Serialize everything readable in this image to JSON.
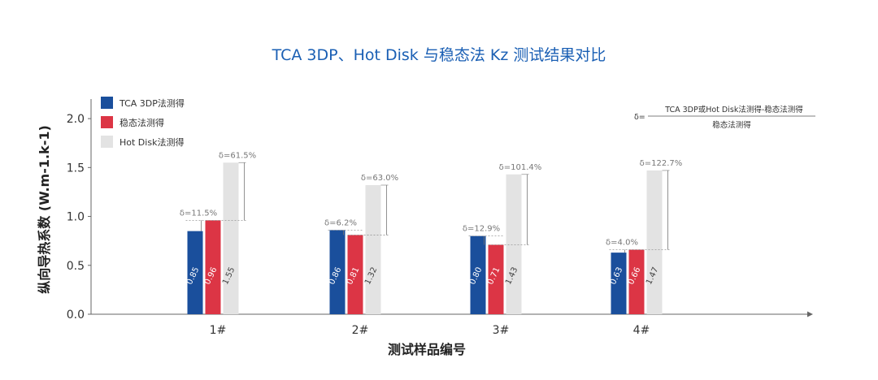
{
  "chart_data": {
    "type": "bar",
    "title": "TCA 3DP、Hot Disk 与稳态法 Kz 测试结果对比",
    "xlabel": "测试样品编号",
    "ylabel": "纵向导热系数 (W.m-1.k-1)",
    "ylim": [
      0,
      2.2
    ],
    "yticks": [
      "0.0",
      "0.5",
      "1.0",
      "1.5",
      "2.0"
    ],
    "ytick_values": [
      0,
      0.5,
      1.0,
      1.5,
      2.0
    ],
    "categories": [
      "1#",
      "2#",
      "3#",
      "4#"
    ],
    "legend_position": "top-left",
    "series": [
      {
        "name": "TCA 3DP法测得",
        "color": "#1a4f9c",
        "values": [
          0.85,
          0.86,
          0.8,
          0.63
        ],
        "labels": [
          "0.85",
          "0.86",
          "0.80",
          "0.63"
        ]
      },
      {
        "name": "稳态法测得",
        "color": "#dc3545",
        "values": [
          0.96,
          0.81,
          0.71,
          0.66
        ],
        "labels": [
          "0.96",
          "0.81",
          "0.71",
          "0.66"
        ]
      },
      {
        "name": "Hot Disk法测得",
        "color": "#e3e3e3",
        "values": [
          1.55,
          1.32,
          1.43,
          1.47
        ],
        "labels": [
          "1.55",
          "1.32",
          "1.43",
          "1.47"
        ]
      }
    ],
    "deltas_tca": [
      "δ=11.5%",
      "δ=6.2%",
      "δ=12.9%",
      "δ=4.0%"
    ],
    "deltas_hotdisk": [
      "δ=61.5%",
      "δ=63.0%",
      "δ=101.4%",
      "δ=122.7%"
    ],
    "formula": {
      "prefix": "δ=",
      "numerator": "TCA 3DP或Hot Disk法测得-稳态法测得",
      "denominator": "稳态法测得"
    }
  }
}
